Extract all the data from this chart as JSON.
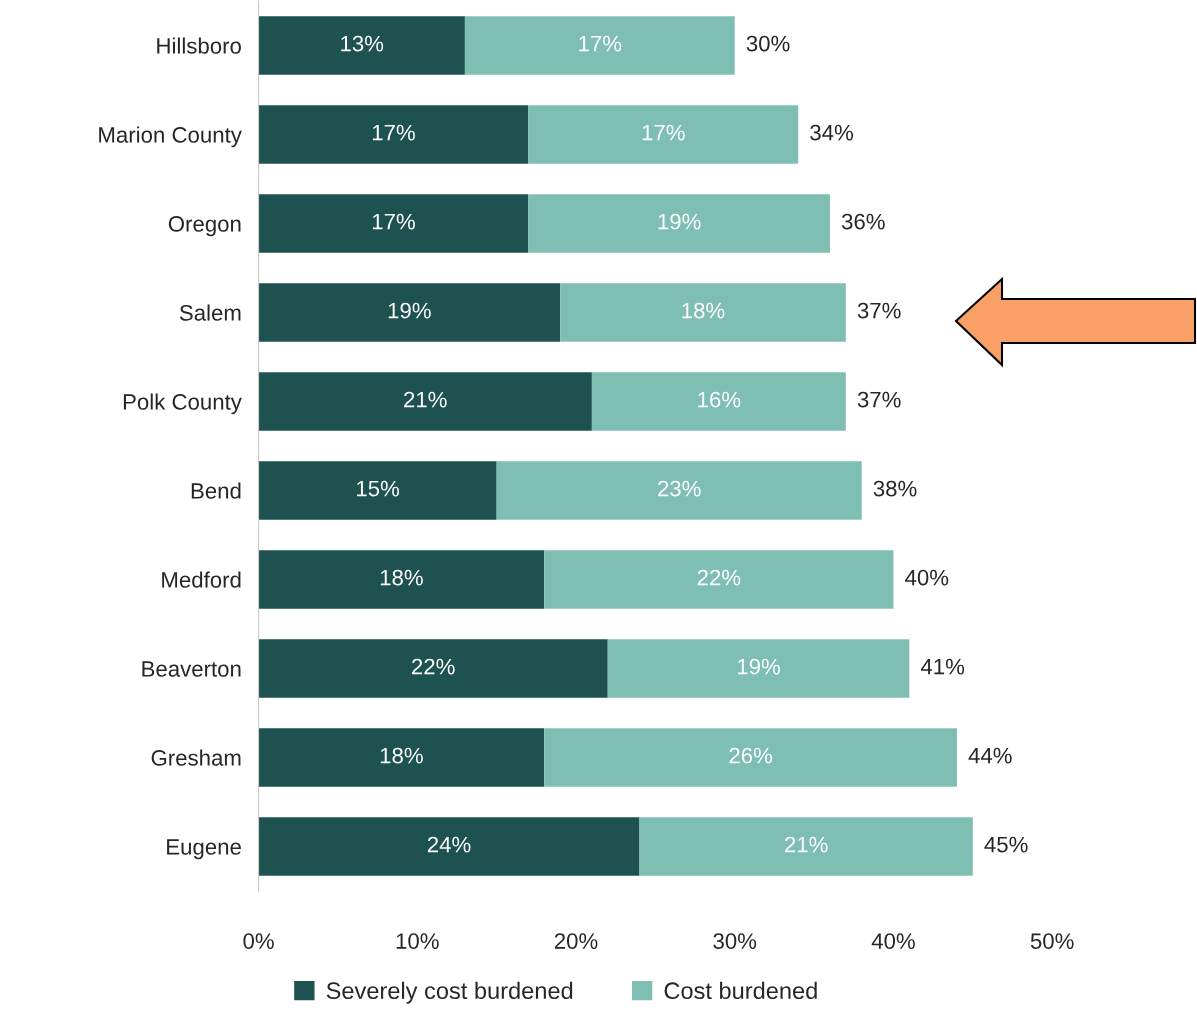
{
  "chart_data": {
    "type": "bar",
    "orientation": "horizontal",
    "stacked": true,
    "categories": [
      "Hillsboro",
      "Marion County",
      "Oregon",
      "Salem",
      "Polk County",
      "Bend",
      "Medford",
      "Beaverton",
      "Gresham",
      "Eugene"
    ],
    "series": [
      {
        "name": "Severely cost burdened",
        "color": "#1e5250",
        "values": [
          13,
          17,
          17,
          19,
          21,
          15,
          18,
          22,
          18,
          24
        ],
        "value_labels": [
          "13%",
          "17%",
          "17%",
          "19%",
          "21%",
          "15%",
          "18%",
          "22%",
          "18%",
          "24%"
        ]
      },
      {
        "name": "Cost burdened",
        "color": "#7fbfb3",
        "values": [
          17,
          17,
          19,
          18,
          16,
          23,
          22,
          19,
          26,
          21
        ],
        "value_labels": [
          "17%",
          "17%",
          "19%",
          "18%",
          "16%",
          "23%",
          "22%",
          "19%",
          "26%",
          "21%"
        ]
      }
    ],
    "totals": [
      "30%",
      "34%",
      "36%",
      "37%",
      "37%",
      "38%",
      "40%",
      "41%",
      "44%",
      "45%"
    ],
    "xlim": [
      0,
      50
    ],
    "xticks": [
      {
        "value": 0,
        "label": "0%"
      },
      {
        "value": 10,
        "label": "10%"
      },
      {
        "value": 20,
        "label": "20%"
      },
      {
        "value": 30,
        "label": "30%"
      },
      {
        "value": 40,
        "label": "40%"
      },
      {
        "value": 50,
        "label": "50%"
      }
    ],
    "grid": false,
    "legend": "bottom"
  }
}
